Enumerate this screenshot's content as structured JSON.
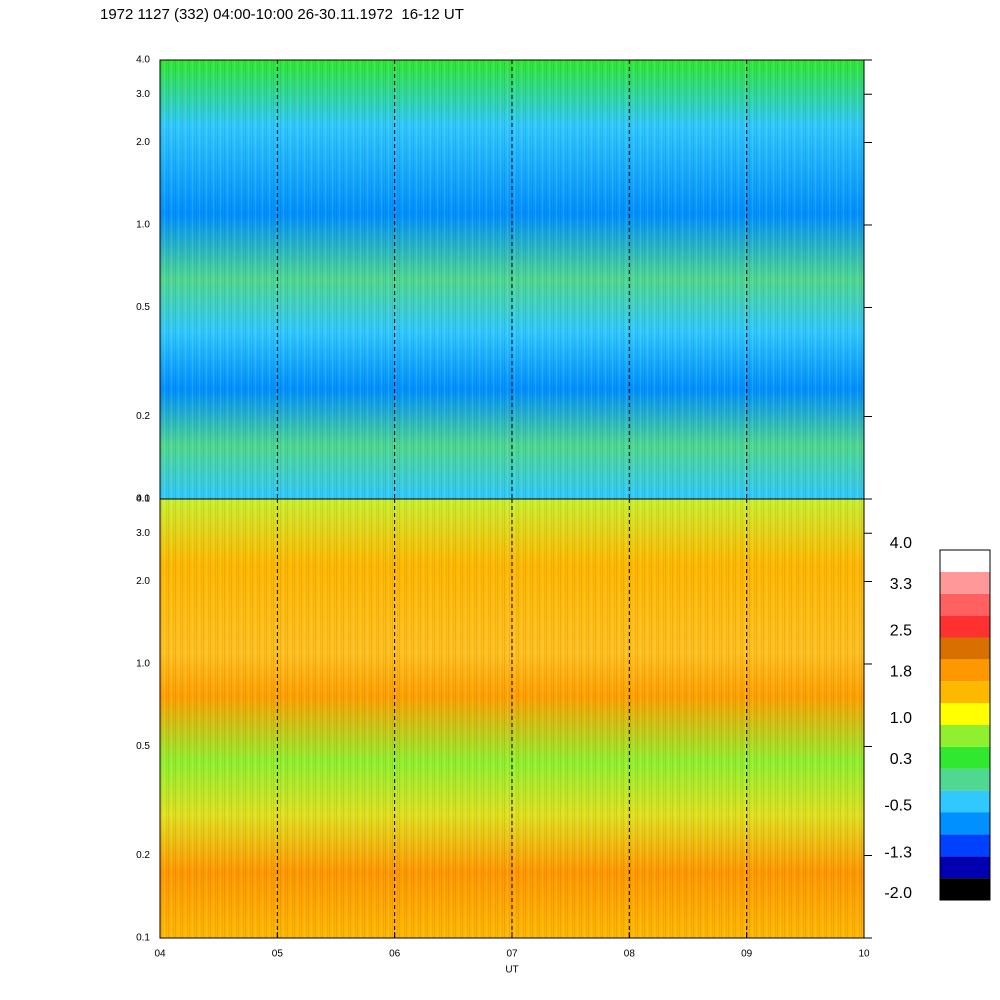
{
  "chart_data": {
    "type": "spectrogram",
    "title": "1972 1127 (332) 04:00-10:00 26-30.11.1972  16-12 UT",
    "x_label": "UT",
    "xlim": [
      4,
      10
    ],
    "xticks": [
      {
        "value": 4,
        "label": "04"
      },
      {
        "value": 5,
        "label": "05"
      },
      {
        "value": 6,
        "label": "06"
      },
      {
        "value": 7,
        "label": "07"
      },
      {
        "value": 8,
        "label": "08"
      },
      {
        "value": 9,
        "label": "09"
      },
      {
        "value": 10,
        "label": "10"
      }
    ],
    "grid": true,
    "log_scale": true,
    "panels": [
      {
        "ylim": [
          0.1,
          4.0
        ],
        "yticks": [
          0.1,
          0.2,
          0.5,
          {
            "value": 1,
            "label": "1.0"
          },
          {
            "value": 2,
            "label": "2.0"
          },
          {
            "value": 3,
            "label": "3.0"
          },
          {
            "value": 4,
            "label": "4.0"
          }
        ]
      },
      {
        "ylim": [
          0.1,
          4.0
        ],
        "yticks": [
          0.1,
          0.2,
          0.5,
          {
            "value": 1,
            "label": "1.0"
          },
          {
            "value": 2,
            "label": "2.0"
          },
          {
            "value": 3,
            "label": "3.0"
          },
          {
            "value": 4,
            "label": "4.0"
          }
        ]
      }
    ],
    "colorbar": {
      "lim": [
        -2,
        4
      ],
      "colors": [
        "#000000",
        "#0000b0",
        "#0040ff",
        "#0090ff",
        "#30c8ff",
        "#50d890",
        "#30e830",
        "#90f030",
        "#ffff00",
        "#ffb800",
        "#ff9800",
        "#d87000",
        "#ff3030",
        "#ff6060",
        "#ff9898",
        "#ffffff"
      ],
      "ticks": [
        {
          "value": -2,
          "label": "-2.0"
        },
        -1.3,
        -0.5,
        0.3,
        {
          "value": 1,
          "label": "1.0"
        },
        1.8,
        2.5,
        3.3,
        {
          "value": 4,
          "label": "4.0"
        }
      ]
    }
  }
}
